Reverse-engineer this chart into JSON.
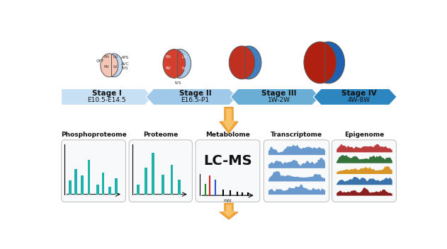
{
  "bg_color": "#ffffff",
  "stages": [
    {
      "label": "Stage I",
      "sub": "E10.5-E14.5"
    },
    {
      "label": "Stage II",
      "sub": "E16.5-P1"
    },
    {
      "label": "Stage III",
      "sub": "1W-2W"
    },
    {
      "label": "Stage IV",
      "sub": "4W-8W"
    }
  ],
  "stage_colors": [
    "#c8e0f4",
    "#a0c8e8",
    "#6aaed6",
    "#2e86c1"
  ],
  "omics": [
    "Phosphoproteome",
    "Proteome",
    "Metabolome",
    "Transcriptome",
    "Epigenome"
  ],
  "lc_ms_text": "LC-MS",
  "teal": "#20b2aa",
  "epi_colors": [
    "#b22222",
    "#1a5e20",
    "#d4880a",
    "#2060a0",
    "#7b0000"
  ],
  "trans_color": "#3a7abf",
  "figure_width": 6.31,
  "figure_height": 3.52,
  "dpi": 100
}
